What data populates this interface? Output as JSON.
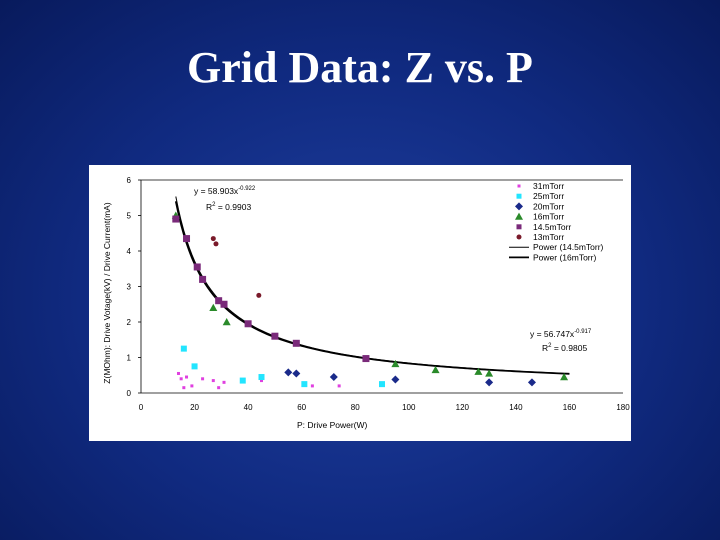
{
  "slide": {
    "title": "Grid Data: Z vs. P"
  },
  "colors": {
    "background": "#102a80",
    "panel": "#ffffff"
  },
  "chart_data": {
    "type": "scatter",
    "xlabel": "P: Drive Power(W)",
    "ylabel": "Z(MOhm): Drive Votage(kV) / Drive Current(mA)",
    "xlim": [
      0,
      180
    ],
    "ylim": [
      0,
      6
    ],
    "xticks": [
      0,
      20,
      40,
      60,
      80,
      100,
      120,
      140,
      160,
      180
    ],
    "yticks": [
      0,
      1,
      2,
      3,
      4,
      5,
      6
    ],
    "grid": "horizontal at y=6 only",
    "legend_position": "top-right",
    "series": [
      {
        "name": "31mTorr",
        "marker": "square",
        "size": 3,
        "color": "#e040e0",
        "points": [
          [
            14,
            0.55
          ],
          [
            15,
            0.4
          ],
          [
            16,
            0.15
          ],
          [
            17,
            0.45
          ],
          [
            19,
            0.2
          ],
          [
            23,
            0.4
          ],
          [
            27,
            0.35
          ],
          [
            29,
            0.15
          ],
          [
            31,
            0.3
          ],
          [
            45,
            0.35
          ],
          [
            64,
            0.2
          ],
          [
            74,
            0.2
          ]
        ]
      },
      {
        "name": "25mTorr",
        "marker": "square",
        "size": 6,
        "color": "#22e5ff",
        "points": [
          [
            16,
            1.25
          ],
          [
            20,
            0.75
          ],
          [
            38,
            0.35
          ],
          [
            45,
            0.45
          ],
          [
            61,
            0.25
          ],
          [
            90,
            0.25
          ]
        ]
      },
      {
        "name": "20mTorr",
        "marker": "diamond",
        "size": 4,
        "color": "#1a2a8a",
        "points": [
          [
            55,
            0.58
          ],
          [
            58,
            0.55
          ],
          [
            72,
            0.45
          ],
          [
            95,
            0.38
          ],
          [
            130,
            0.3
          ],
          [
            146,
            0.3
          ]
        ]
      },
      {
        "name": "16mTorr",
        "marker": "triangle",
        "size": 4,
        "color": "#2a8a2a",
        "points": [
          [
            13,
            5.0
          ],
          [
            27,
            2.4
          ],
          [
            32,
            2.0
          ],
          [
            95,
            0.82
          ],
          [
            110,
            0.65
          ],
          [
            126,
            0.6
          ],
          [
            130,
            0.55
          ],
          [
            158,
            0.45
          ]
        ]
      },
      {
        "name": "14.5mTorr",
        "marker": "square",
        "size": 7,
        "color": "#7a2a7a",
        "points": [
          [
            13,
            4.9
          ],
          [
            17,
            4.35
          ],
          [
            21,
            3.55
          ],
          [
            23,
            3.2
          ],
          [
            29,
            2.6
          ],
          [
            31,
            2.5
          ],
          [
            40,
            1.95
          ],
          [
            50,
            1.6
          ],
          [
            58,
            1.4
          ],
          [
            84,
            0.97
          ]
        ]
      },
      {
        "name": "13mTorr",
        "marker": "circle",
        "size": 2.5,
        "color": "#7a1a2a",
        "points": [
          [
            27,
            4.35
          ],
          [
            28,
            4.2
          ],
          [
            44,
            2.75
          ]
        ]
      }
    ],
    "fits": [
      {
        "name": "Power (14.5mTorr)",
        "color": "#000000",
        "width": 1,
        "a": 58.903,
        "b": 0.922
      },
      {
        "name": "Power (16mTorr)",
        "color": "#000000",
        "width": 1.8,
        "a": 56.747,
        "b": 0.917
      }
    ],
    "annotations": [
      {
        "id": "eq1",
        "equation": "y = 58.903x",
        "exponent": "-0.922",
        "r2_label": "R",
        "r2_sup": "2",
        "r2_value": " = 0.9903"
      },
      {
        "id": "eq2",
        "equation": "y = 56.747x",
        "exponent": "-0.917",
        "r2_label": "R",
        "r2_sup": "2",
        "r2_value": " = 0.9805"
      }
    ]
  }
}
